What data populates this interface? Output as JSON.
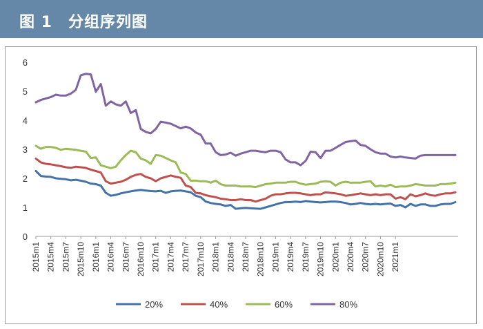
{
  "header": {
    "title": "图 1　分组序列图",
    "bg_color": "#6688a8"
  },
  "chart_data": {
    "type": "line",
    "title": "分组序列图",
    "xlabel": "",
    "ylabel": "",
    "ylim": [
      0,
      6
    ],
    "yticks": [
      "0",
      "1",
      "2",
      "3",
      "4",
      "5",
      "6"
    ],
    "grid": false,
    "legend_position": "bottom",
    "x_tick_labels": [
      "2015m1",
      "2015m4",
      "2015m7",
      "2015m10",
      "2016m1",
      "2016m4",
      "2016m7",
      "2016m10",
      "2017m1",
      "2017m4",
      "2017m7",
      "2017m10",
      "2018m1",
      "2018m4",
      "2018m7",
      "2018m10",
      "2019m1",
      "2019m4",
      "2019m7",
      "2019m10",
      "2020m1",
      "2020m4",
      "2020m7",
      "2020m10",
      "2021m1"
    ],
    "series": [
      {
        "name": "20%",
        "color": "#4472a8",
        "values": [
          2.25,
          2.08,
          2.06,
          2.05,
          2.0,
          1.98,
          1.97,
          1.93,
          1.95,
          1.92,
          1.88,
          1.82,
          1.8,
          1.75,
          1.5,
          1.4,
          1.43,
          1.48,
          1.52,
          1.55,
          1.58,
          1.6,
          1.58,
          1.56,
          1.55,
          1.57,
          1.5,
          1.55,
          1.57,
          1.58,
          1.55,
          1.52,
          1.4,
          1.35,
          1.2,
          1.15,
          1.12,
          1.1,
          1.05,
          1.08,
          0.95,
          0.97,
          0.98,
          0.97,
          0.96,
          0.95,
          1.0,
          1.05,
          1.1,
          1.15,
          1.18,
          1.18,
          1.2,
          1.18,
          1.22,
          1.2,
          1.18,
          1.17,
          1.18,
          1.2,
          1.2,
          1.18,
          1.15,
          1.1,
          1.12,
          1.15,
          1.12,
          1.1,
          1.12,
          1.1,
          1.12,
          1.13,
          1.05,
          1.08,
          1.0,
          1.12,
          1.05,
          1.1,
          1.1,
          1.05,
          1.05,
          1.1,
          1.12,
          1.12,
          1.18
        ]
      },
      {
        "name": "40%",
        "color": "#c0504d",
        "values": [
          2.68,
          2.55,
          2.5,
          2.48,
          2.45,
          2.42,
          2.38,
          2.36,
          2.4,
          2.38,
          2.36,
          2.3,
          2.25,
          2.2,
          1.9,
          1.82,
          1.85,
          1.88,
          1.95,
          2.05,
          2.12,
          2.15,
          2.05,
          2.0,
          1.9,
          2.0,
          2.05,
          2.1,
          2.05,
          2.02,
          1.75,
          1.7,
          1.5,
          1.48,
          1.42,
          1.38,
          1.35,
          1.3,
          1.28,
          1.25,
          1.25,
          1.28,
          1.25,
          1.25,
          1.2,
          1.25,
          1.3,
          1.4,
          1.45,
          1.45,
          1.48,
          1.5,
          1.5,
          1.48,
          1.45,
          1.42,
          1.45,
          1.45,
          1.52,
          1.5,
          1.48,
          1.45,
          1.4,
          1.42,
          1.45,
          1.48,
          1.45,
          1.42,
          1.45,
          1.42,
          1.45,
          1.45,
          1.3,
          1.35,
          1.28,
          1.45,
          1.38,
          1.42,
          1.48,
          1.42,
          1.4,
          1.45,
          1.48,
          1.48,
          1.52
        ]
      },
      {
        "name": "60%",
        "color": "#9bbb59",
        "values": [
          3.12,
          3.02,
          3.08,
          3.08,
          3.05,
          2.98,
          3.02,
          3.0,
          2.98,
          2.95,
          2.92,
          2.7,
          2.72,
          2.45,
          2.4,
          2.35,
          2.4,
          2.62,
          2.8,
          2.95,
          2.9,
          2.68,
          2.62,
          2.5,
          2.8,
          2.78,
          2.7,
          2.62,
          2.55,
          2.2,
          2.15,
          1.92,
          1.92,
          1.9,
          1.9,
          1.85,
          1.92,
          1.8,
          1.75,
          1.75,
          1.75,
          1.72,
          1.72,
          1.72,
          1.7,
          1.75,
          1.8,
          1.82,
          1.85,
          1.85,
          1.85,
          1.88,
          1.88,
          1.82,
          1.78,
          1.8,
          1.82,
          1.88,
          1.9,
          1.88,
          1.75,
          1.85,
          1.88,
          1.85,
          1.85,
          1.85,
          1.88,
          1.9,
          1.72,
          1.75,
          1.72,
          1.78,
          1.7,
          1.72,
          1.72,
          1.75,
          1.8,
          1.78,
          1.75,
          1.75,
          1.75,
          1.8,
          1.8,
          1.82,
          1.85
        ]
      },
      {
        "name": "80%",
        "color": "#8064a2",
        "values": [
          4.62,
          4.7,
          4.75,
          4.8,
          4.88,
          4.85,
          4.85,
          4.92,
          5.05,
          5.55,
          5.6,
          5.58,
          4.98,
          5.25,
          4.5,
          4.65,
          4.55,
          4.5,
          4.65,
          4.25,
          4.35,
          3.7,
          3.6,
          3.55,
          3.7,
          3.95,
          3.92,
          3.88,
          3.8,
          3.72,
          3.78,
          3.72,
          3.58,
          3.5,
          3.2,
          3.2,
          2.9,
          2.8,
          2.82,
          2.88,
          2.78,
          2.85,
          2.9,
          2.95,
          2.95,
          2.92,
          2.9,
          2.95,
          2.95,
          2.9,
          2.65,
          2.55,
          2.55,
          2.45,
          2.6,
          2.92,
          2.9,
          2.7,
          2.95,
          2.95,
          3.05,
          3.15,
          3.25,
          3.28,
          3.3,
          3.15,
          3.12,
          3.0,
          2.9,
          2.85,
          2.85,
          2.75,
          2.72,
          2.75,
          2.72,
          2.7,
          2.68,
          2.78,
          2.8,
          2.8,
          2.8,
          2.8,
          2.8,
          2.8,
          2.8
        ]
      }
    ]
  }
}
